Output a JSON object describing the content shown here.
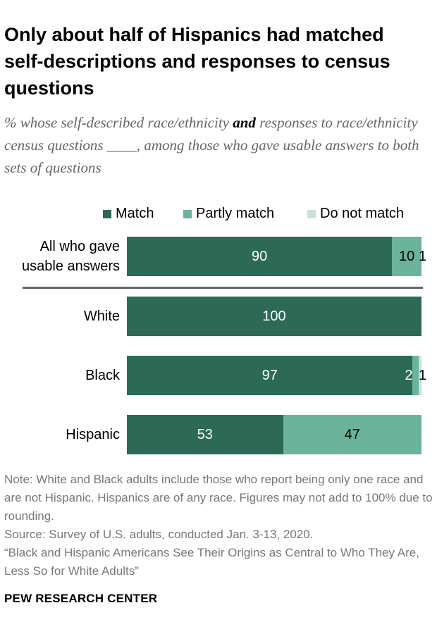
{
  "title": "Only about half of Hispanics had matched self-descriptions and responses to census questions",
  "subtitle": {
    "part1": "% whose self-described race/ethnicity ",
    "bold": "and",
    "part2": " responses to race/ethnicity census questions ____, among those who gave usable answers to both sets of questions"
  },
  "colors": {
    "match": "#2d6a56",
    "partly_match": "#6bb39b",
    "do_not_match": "#c6e3d6",
    "divider": "#666666"
  },
  "chart_data": {
    "type": "bar",
    "orientation": "horizontal",
    "stacked": true,
    "legend_position": "top-right",
    "xlim": [
      0,
      100
    ],
    "categories": [
      [
        "All who gave",
        "usable answers"
      ],
      [
        "White"
      ],
      [
        "Black"
      ],
      [
        "Hispanic"
      ]
    ],
    "series": [
      {
        "name": "Match",
        "values": [
          90,
          100,
          97,
          53
        ],
        "labels": [
          "90",
          "100",
          "97",
          "53"
        ]
      },
      {
        "name": "Partly match",
        "values": [
          10,
          0,
          2,
          47
        ],
        "labels": [
          "10",
          "",
          "2",
          "47"
        ]
      },
      {
        "name": "Do not match",
        "values": [
          1,
          0,
          1,
          0
        ],
        "labels": [
          "1",
          "",
          "1",
          ""
        ]
      }
    ]
  },
  "notes": {
    "note": "Note: White and Black adults include those who report being only one race and are not Hispanic. Hispanics are of any race. Figures may not add to 100% due to rounding.",
    "source": "Source: Survey of U.S. adults, conducted Jan. 3-13, 2020.",
    "report": "“Black and Hispanic Americans See Their Origins as Central to Who They Are, Less So for White Adults”"
  },
  "brand": "PEW RESEARCH CENTER"
}
